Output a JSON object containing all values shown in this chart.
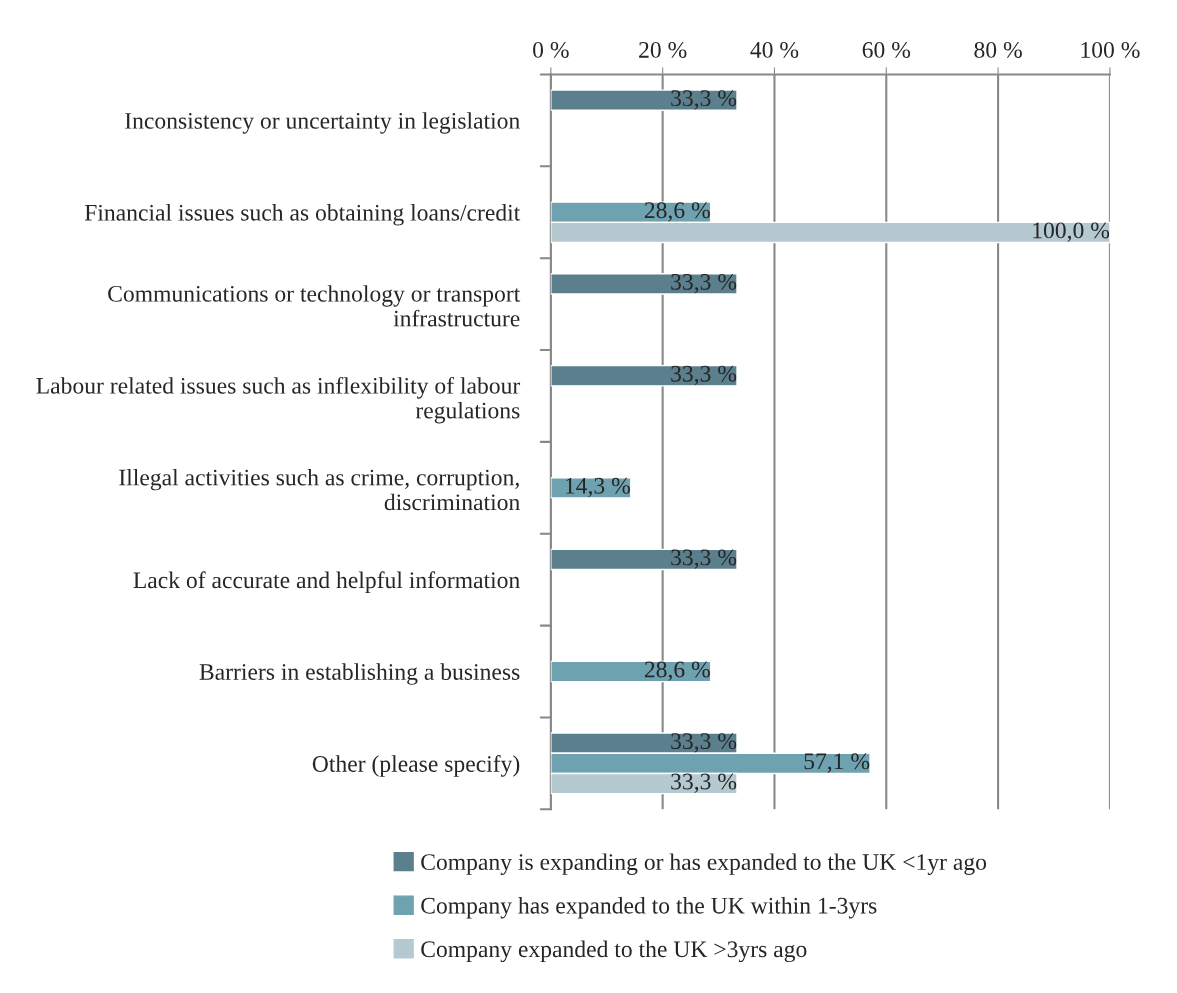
{
  "chart_data": {
    "type": "bar",
    "orientation": "horizontal",
    "categories": [
      "Inconsistency or uncertainty in legislation",
      "Financial issues such as obtaining loans/credit",
      "Communications or technology or transport infrastructure",
      "Labour related issues such as inflexibility of labour regulations",
      "Illegal activities such as crime, corruption, discrimination",
      "Lack of accurate and helpful information",
      "Barriers in establishing a business",
      "Other (please specify)"
    ],
    "series": [
      {
        "name": "Company is expanding or has expanded to the UK <1yr ago",
        "color": "#5b7f8d",
        "values": [
          33.3,
          null,
          33.3,
          33.3,
          null,
          33.3,
          null,
          33.3
        ],
        "value_labels": [
          "33,3 %",
          null,
          "33,3 %",
          "33,3 %",
          null,
          "33,3 %",
          null,
          "33,3 %"
        ]
      },
      {
        "name": "Company has expanded to the UK within 1-3yrs",
        "color": "#6fa2b1",
        "values": [
          null,
          28.6,
          null,
          null,
          14.3,
          null,
          28.6,
          57.1
        ],
        "value_labels": [
          null,
          "28,6 %",
          null,
          null,
          "14,3 %",
          null,
          "28,6 %",
          "57,1 %"
        ]
      },
      {
        "name": "Company expanded to the UK >3yrs ago",
        "color": "#b5c9d1",
        "values": [
          null,
          100.0,
          null,
          null,
          null,
          null,
          null,
          33.3
        ],
        "value_labels": [
          null,
          "100,0 %",
          null,
          null,
          null,
          null,
          null,
          "33,3 %"
        ]
      }
    ],
    "xlim": [
      0,
      100
    ],
    "xticks": [
      {
        "value": 0,
        "label": "0 %"
      },
      {
        "value": 20,
        "label": "20 %"
      },
      {
        "value": 40,
        "label": "40 %"
      },
      {
        "value": 60,
        "label": "60 %"
      },
      {
        "value": 80,
        "label": "80 %"
      },
      {
        "value": 100,
        "label": "100 %"
      }
    ],
    "grid": "x",
    "legend": "bottom"
  }
}
